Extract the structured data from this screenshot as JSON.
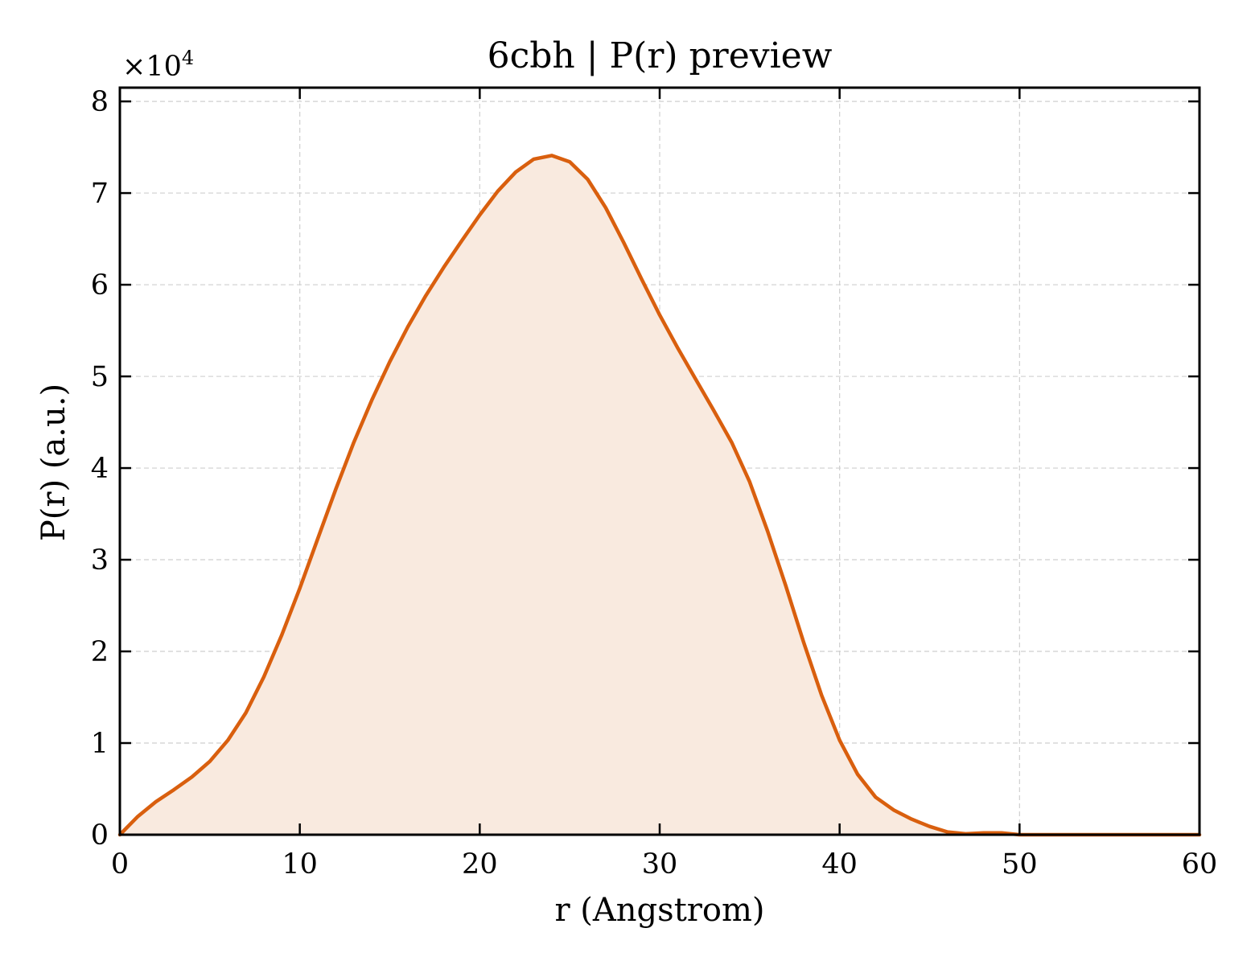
{
  "chart_data": {
    "type": "area",
    "title": "6cbh | P(r) preview",
    "xlabel": "r (Angstrom)",
    "ylabel": "P(r) (a.u.)",
    "y_multiplier": {
      "base": "×10",
      "exponent": "4"
    },
    "xlim": [
      0,
      60
    ],
    "ylim": [
      0,
      81500
    ],
    "xticks": [
      0,
      10,
      20,
      30,
      40,
      50,
      60
    ],
    "xtick_labels": [
      "0",
      "10",
      "20",
      "30",
      "40",
      "50",
      "60"
    ],
    "yticks": [
      0,
      10000,
      20000,
      30000,
      40000,
      50000,
      60000,
      70000,
      80000
    ],
    "ytick_labels": [
      "0",
      "1",
      "2",
      "3",
      "4",
      "5",
      "6",
      "7",
      "8"
    ],
    "grid": true,
    "series": [
      {
        "color": "#d95f0e",
        "fill_color": "#f9eadf",
        "x": [
          0,
          1,
          2,
          3,
          4,
          5,
          6,
          7,
          8,
          9,
          10,
          11,
          12,
          13,
          14,
          15,
          16,
          17,
          18,
          19,
          20,
          21,
          22,
          23,
          24,
          25,
          26,
          27,
          28,
          29,
          30,
          31,
          32,
          33,
          34,
          35,
          36,
          37,
          38,
          39,
          40,
          41,
          42,
          43,
          44,
          45,
          46,
          47,
          48,
          49,
          50,
          51,
          52,
          53,
          54,
          55,
          56,
          57,
          58,
          59,
          60
        ],
        "y": [
          0,
          2000,
          3600,
          4900,
          6300,
          8000,
          10300,
          13300,
          17200,
          21800,
          26900,
          32300,
          37700,
          42800,
          47400,
          51600,
          55400,
          58800,
          61900,
          64800,
          67600,
          70200,
          72300,
          73700,
          74100,
          73400,
          71500,
          68400,
          64600,
          60600,
          56700,
          53100,
          49700,
          46300,
          42800,
          38500,
          33100,
          27200,
          21000,
          15200,
          10300,
          6600,
          4100,
          2700,
          1700,
          900,
          300,
          100,
          200,
          200,
          0,
          0,
          0,
          0,
          0,
          0,
          0,
          0,
          0,
          0,
          0
        ]
      }
    ]
  }
}
